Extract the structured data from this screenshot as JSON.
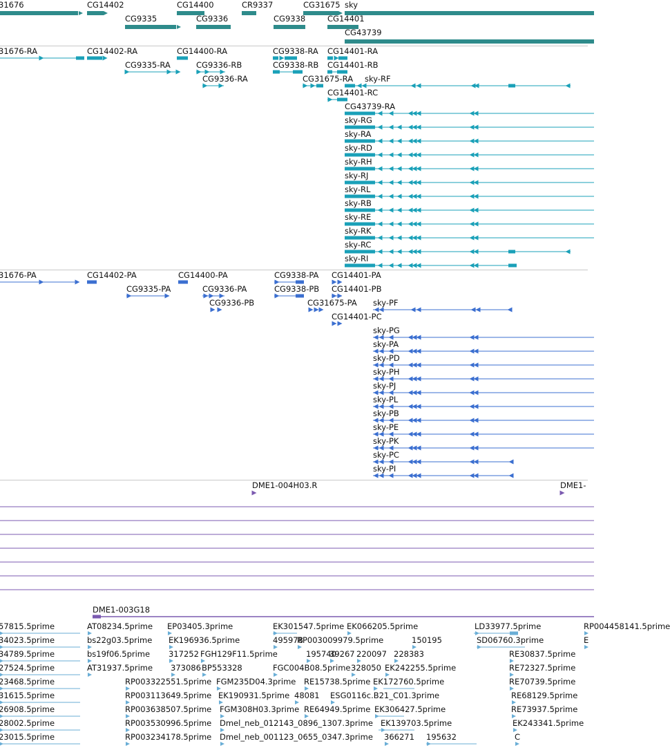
{
  "colors": {
    "gene": "#2e8b8b",
    "rna": "#1aa0b8",
    "protein": "#3b6fd0",
    "clone": "#7b5ab0",
    "est": "#6aaed6",
    "separator": "#c8c8c8"
  },
  "tracks": {
    "genes": [
      "31676",
      "CG14402",
      "CG14400",
      "CR9337",
      "CG31675",
      "sky",
      "CG9335",
      "CG9336",
      "CG9338",
      "CG14401",
      "CG43739"
    ],
    "transcripts": [
      "31676-RA",
      "CG14402-RA",
      "CG14400-RA",
      "CG9338-RA",
      "CG14401-RA",
      "CG9335-RA",
      "CG9336-RB",
      "CG9338-RB",
      "CG14401-RB",
      "CG9336-RA",
      "CG31675-RA",
      "sky-RF",
      "CG14401-RC",
      "CG43739-RA",
      "sky-RG",
      "sky-RA",
      "sky-RD",
      "sky-RH",
      "sky-RJ",
      "sky-RL",
      "sky-RB",
      "sky-RE",
      "sky-RK",
      "sky-RC",
      "sky-RI"
    ],
    "proteins": [
      "31676-PA",
      "CG14402-PA",
      "CG14400-PA",
      "CG9338-PA",
      "CG14401-PA",
      "CG9335-PA",
      "CG9336-PA",
      "CG9338-PB",
      "CG14401-PB",
      "CG9336-PB",
      "CG31675-PA",
      "sky-PF",
      "CG14401-PC",
      "sky-PG",
      "sky-PA",
      "sky-PD",
      "sky-PH",
      "sky-PJ",
      "sky-PL",
      "sky-PB",
      "sky-PE",
      "sky-PK",
      "sky-PC",
      "sky-PI"
    ],
    "clones": [
      "DME1-004H03.R",
      "DME1-",
      "DME1-003G18"
    ],
    "ests": [
      "57815.5prime",
      "AT08234.5prime",
      "EP03405.3prime",
      "EK301547.5prime",
      "EK066205.5prime",
      "LD33977.5prime",
      "34023.5prime",
      "bs22g03.5prime",
      "EK196936.5prime",
      "495978",
      "RP003009979.5prime",
      "150195",
      "SD06760.3prime",
      "34789.5prime",
      "bs19f06.5prime",
      "317252",
      "FGH129F11.5prime",
      "195740",
      "39267",
      "220097",
      "228383",
      "RE30837.5prime",
      "27524.5prime",
      "AT31937.5prime",
      "373086",
      "BP553328",
      "FGC004B08.5prime",
      "328050",
      "EK242255.5prime",
      "RE72327.5prime",
      "23468.5prime",
      "RP003322551.5prime",
      "FGM235D04.3prime",
      "RE15738.5prime",
      "EK172760.5prime",
      "RE70739.5prime",
      "31615.5prime",
      "RP003113649.5prime",
      "EK190931.5prime",
      "48081",
      "ESG0116c.B21_C01.3prime",
      "RE68129.5prime",
      "26908.5prime",
      "RP003638507.5prime",
      "FGM308H03.3prime",
      "RE64949.5prime",
      "EK306427.5prime",
      "RE73937.5prime",
      "28002.5prime",
      "RP003530996.5prime",
      "Dmel_neb_012143_0896_1307.3prime",
      "EK139703.5prime",
      "EK243341.5prime",
      "23015.5prime",
      "RP003234178.5prime",
      "Dmel_neb_001123_0655_0347.3prime",
      "366271",
      "195632",
      "RP004458141.5prime",
      "E",
      "C"
    ]
  }
}
